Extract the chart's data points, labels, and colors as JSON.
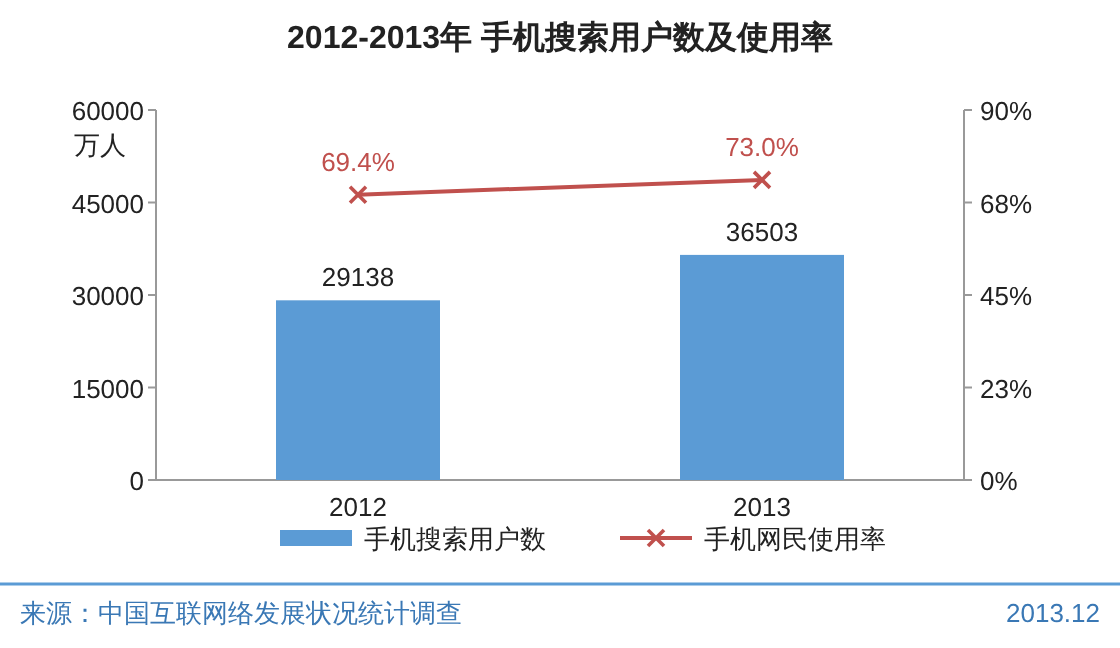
{
  "chart_data": {
    "type": "bar",
    "title": "2012-2013年 手机搜索用户数及使用率",
    "categories": [
      "2012",
      "2013"
    ],
    "series": [
      {
        "name": "手机搜索用户数",
        "color": "#5b9bd5",
        "values": [
          29138,
          36503
        ],
        "value_labels": [
          "29138",
          "36503"
        ]
      },
      {
        "name": "手机网民使用率",
        "type": "line",
        "axis": "y2",
        "color": "#c0504d",
        "values": [
          69.4,
          73.0
        ],
        "value_labels": [
          "69.4%",
          "73.0%"
        ]
      }
    ],
    "marker": "cross",
    "ylabel": "万人",
    "ylim": [
      0,
      60000
    ],
    "yticks": [
      0,
      15000,
      30000,
      45000,
      60000
    ],
    "y2lim": [
      0,
      90
    ],
    "y2ticks": [
      {
        "value": 0,
        "label": "0%"
      },
      {
        "value": 22.5,
        "label": "23%"
      },
      {
        "value": 45,
        "label": "45%"
      },
      {
        "value": 67.5,
        "label": "68%"
      },
      {
        "value": 90,
        "label": "90%"
      }
    ],
    "legend": "bottom",
    "annotations": [
      "来源：中国互联网络发展状况统计调查",
      "2013.12"
    ]
  }
}
